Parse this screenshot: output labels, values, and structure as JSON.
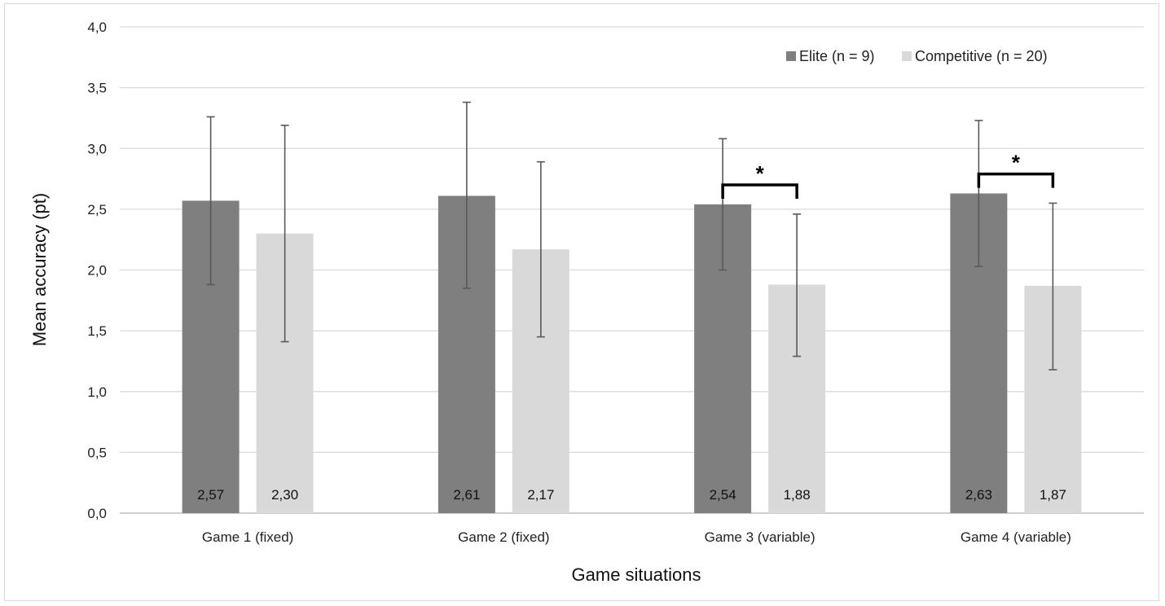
{
  "chart_data": {
    "type": "bar",
    "title": "",
    "xlabel": "Game situations",
    "ylabel": "Mean accuracy (pt)",
    "ylim": [
      0,
      4
    ],
    "yticks": [
      "0,0",
      "0,5",
      "1,0",
      "1,5",
      "2,0",
      "2,5",
      "3,0",
      "3,5",
      "4,0"
    ],
    "ytick_values": [
      0,
      0.5,
      1,
      1.5,
      2,
      2.5,
      3,
      3.5,
      4
    ],
    "grid": true,
    "legend_position": "top-right",
    "categories": [
      "Game 1 (fixed)",
      "Game 2 (fixed)",
      "Game 3 (variable)",
      "Game 4 (variable)"
    ],
    "series": [
      {
        "name": "Elite (n = 9)",
        "color": "#7f7f7f",
        "values": [
          2.57,
          2.61,
          2.54,
          2.63
        ],
        "labels": [
          "2,57",
          "2,61",
          "2,54",
          "2,63"
        ],
        "error_low": [
          1.88,
          1.85,
          2.0,
          2.03
        ],
        "error_high": [
          3.26,
          3.38,
          3.08,
          3.23
        ]
      },
      {
        "name": "Competitive (n = 20)",
        "color": "#d9d9d9",
        "values": [
          2.3,
          2.17,
          1.88,
          1.87
        ],
        "labels": [
          "2,30",
          "2,17",
          "1,88",
          "1,87"
        ],
        "error_low": [
          1.41,
          1.45,
          1.29,
          1.18
        ],
        "error_high": [
          3.19,
          2.89,
          2.46,
          2.55
        ]
      }
    ],
    "annotations": [
      {
        "category_index": 2,
        "text": "*",
        "bracket_level": 2.7
      },
      {
        "category_index": 3,
        "text": "*",
        "bracket_level": 2.79
      }
    ]
  }
}
